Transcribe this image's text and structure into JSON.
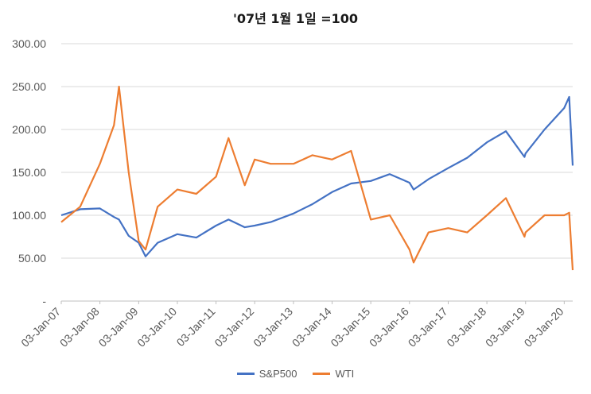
{
  "chart_data": {
    "type": "line",
    "title": "'07년 1월 1일 =100",
    "xlabel": "",
    "ylabel": "",
    "ylim": [
      0,
      300
    ],
    "yticks": [
      "-",
      "50.00",
      "100.00",
      "150.00",
      "200.00",
      "250.00",
      "300.00"
    ],
    "x": [
      "2007-01-03",
      "2007-07-01",
      "2008-01-03",
      "2008-05-15",
      "2008-07-01",
      "2008-10-01",
      "2009-01-03",
      "2009-03-09",
      "2009-07-01",
      "2010-01-03",
      "2010-07-01",
      "2011-01-03",
      "2011-05-01",
      "2011-10-01",
      "2012-01-03",
      "2012-06-01",
      "2013-01-03",
      "2013-07-01",
      "2014-01-03",
      "2014-07-01",
      "2015-01-03",
      "2015-07-01",
      "2016-01-03",
      "2016-02-11",
      "2016-07-01",
      "2017-01-03",
      "2017-07-01",
      "2018-01-03",
      "2018-07-01",
      "2018-12-24",
      "2019-01-03",
      "2019-07-01",
      "2020-01-03",
      "2020-02-19",
      "2020-03-23"
    ],
    "xtick_labels": [
      "03-Jan-07",
      "03-Jan-08",
      "03-Jan-09",
      "03-Jan-10",
      "03-Jan-11",
      "03-Jan-12",
      "03-Jan-13",
      "03-Jan-14",
      "03-Jan-15",
      "03-Jan-16",
      "03-Jan-17",
      "03-Jan-18",
      "03-Jan-19",
      "03-Jan-20"
    ],
    "grid": true,
    "legend_position": "bottom",
    "series": [
      {
        "name": "S&P500",
        "color": "#4472C4",
        "values": [
          100,
          107,
          108,
          98,
          95,
          76,
          68,
          52,
          68,
          78,
          74,
          88,
          95,
          86,
          88,
          92,
          102,
          113,
          127,
          137,
          140,
          148,
          138,
          130,
          142,
          155,
          167,
          185,
          198,
          168,
          172,
          200,
          225,
          238,
          158
        ]
      },
      {
        "name": "WTI",
        "color": "#ED7D31",
        "values": [
          92,
          110,
          160,
          205,
          250,
          150,
          70,
          60,
          110,
          130,
          125,
          145,
          190,
          135,
          165,
          160,
          160,
          170,
          165,
          175,
          95,
          100,
          60,
          45,
          80,
          85,
          80,
          100,
          120,
          75,
          80,
          100,
          100,
          103,
          36
        ]
      }
    ]
  }
}
